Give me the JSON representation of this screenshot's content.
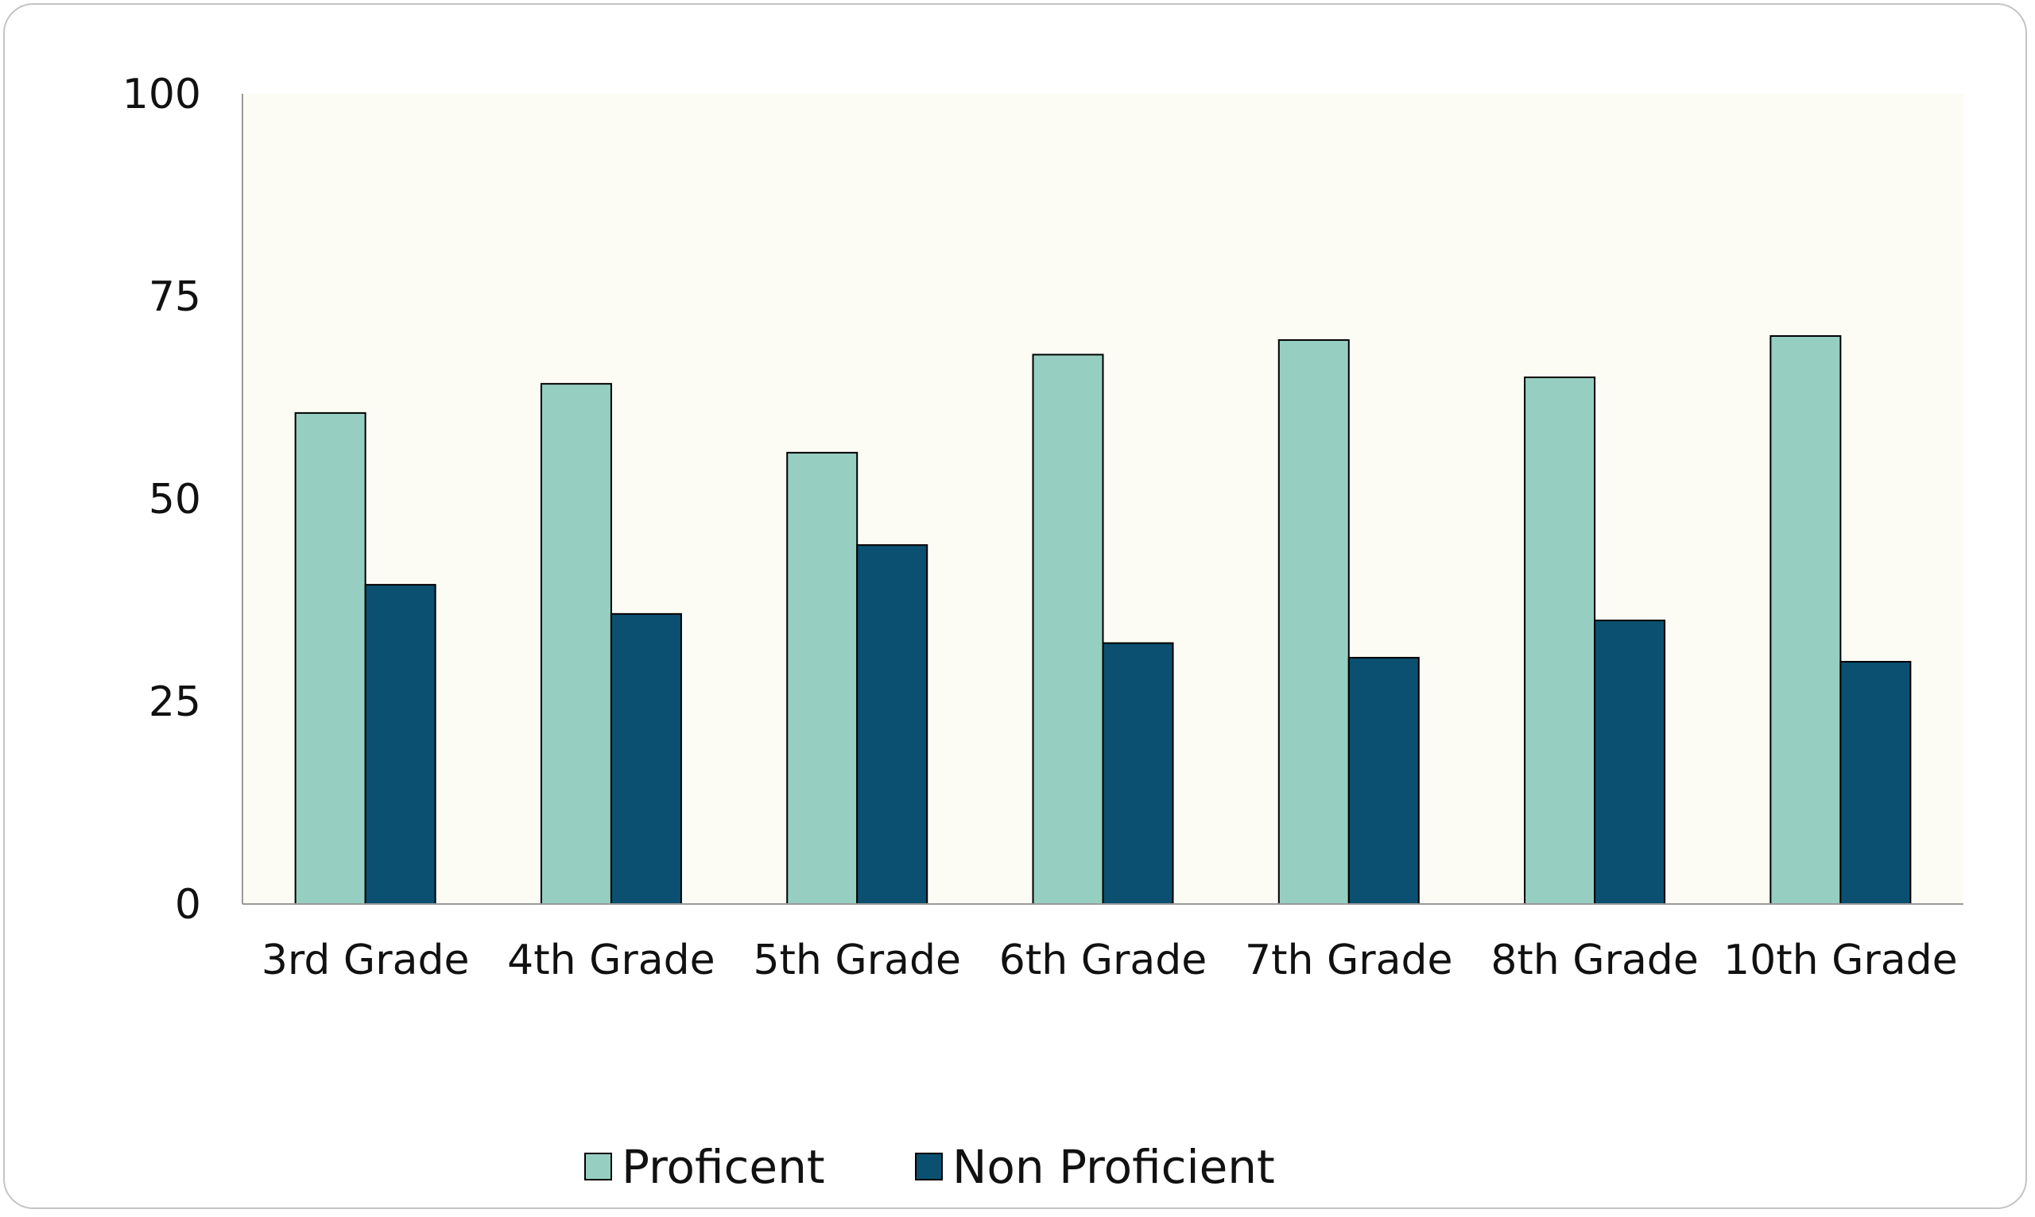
{
  "chart_data": {
    "type": "bar",
    "categories": [
      "3rd Grade",
      "4th Grade",
      "5th Grade",
      "6th Grade",
      "7th Grade",
      "8th Grade",
      "10th Grade"
    ],
    "series": [
      {
        "name": "Proficent",
        "values": [
          60.6,
          64.2,
          55.7,
          67.8,
          69.6,
          65.0,
          70.1
        ],
        "color": "#96cfc2"
      },
      {
        "name": "Non Proficient",
        "values": [
          39.4,
          35.8,
          44.3,
          32.2,
          30.4,
          35.0,
          29.9
        ],
        "color": "#0b5070"
      }
    ],
    "yticks": [
      "0",
      "25",
      "50",
      "75",
      "100"
    ],
    "ylim": [
      0,
      100
    ],
    "title": "",
    "xlabel": "",
    "ylabel": "",
    "grid": false,
    "legend_position": "bottom",
    "plot_background": "#fcfcf5"
  }
}
